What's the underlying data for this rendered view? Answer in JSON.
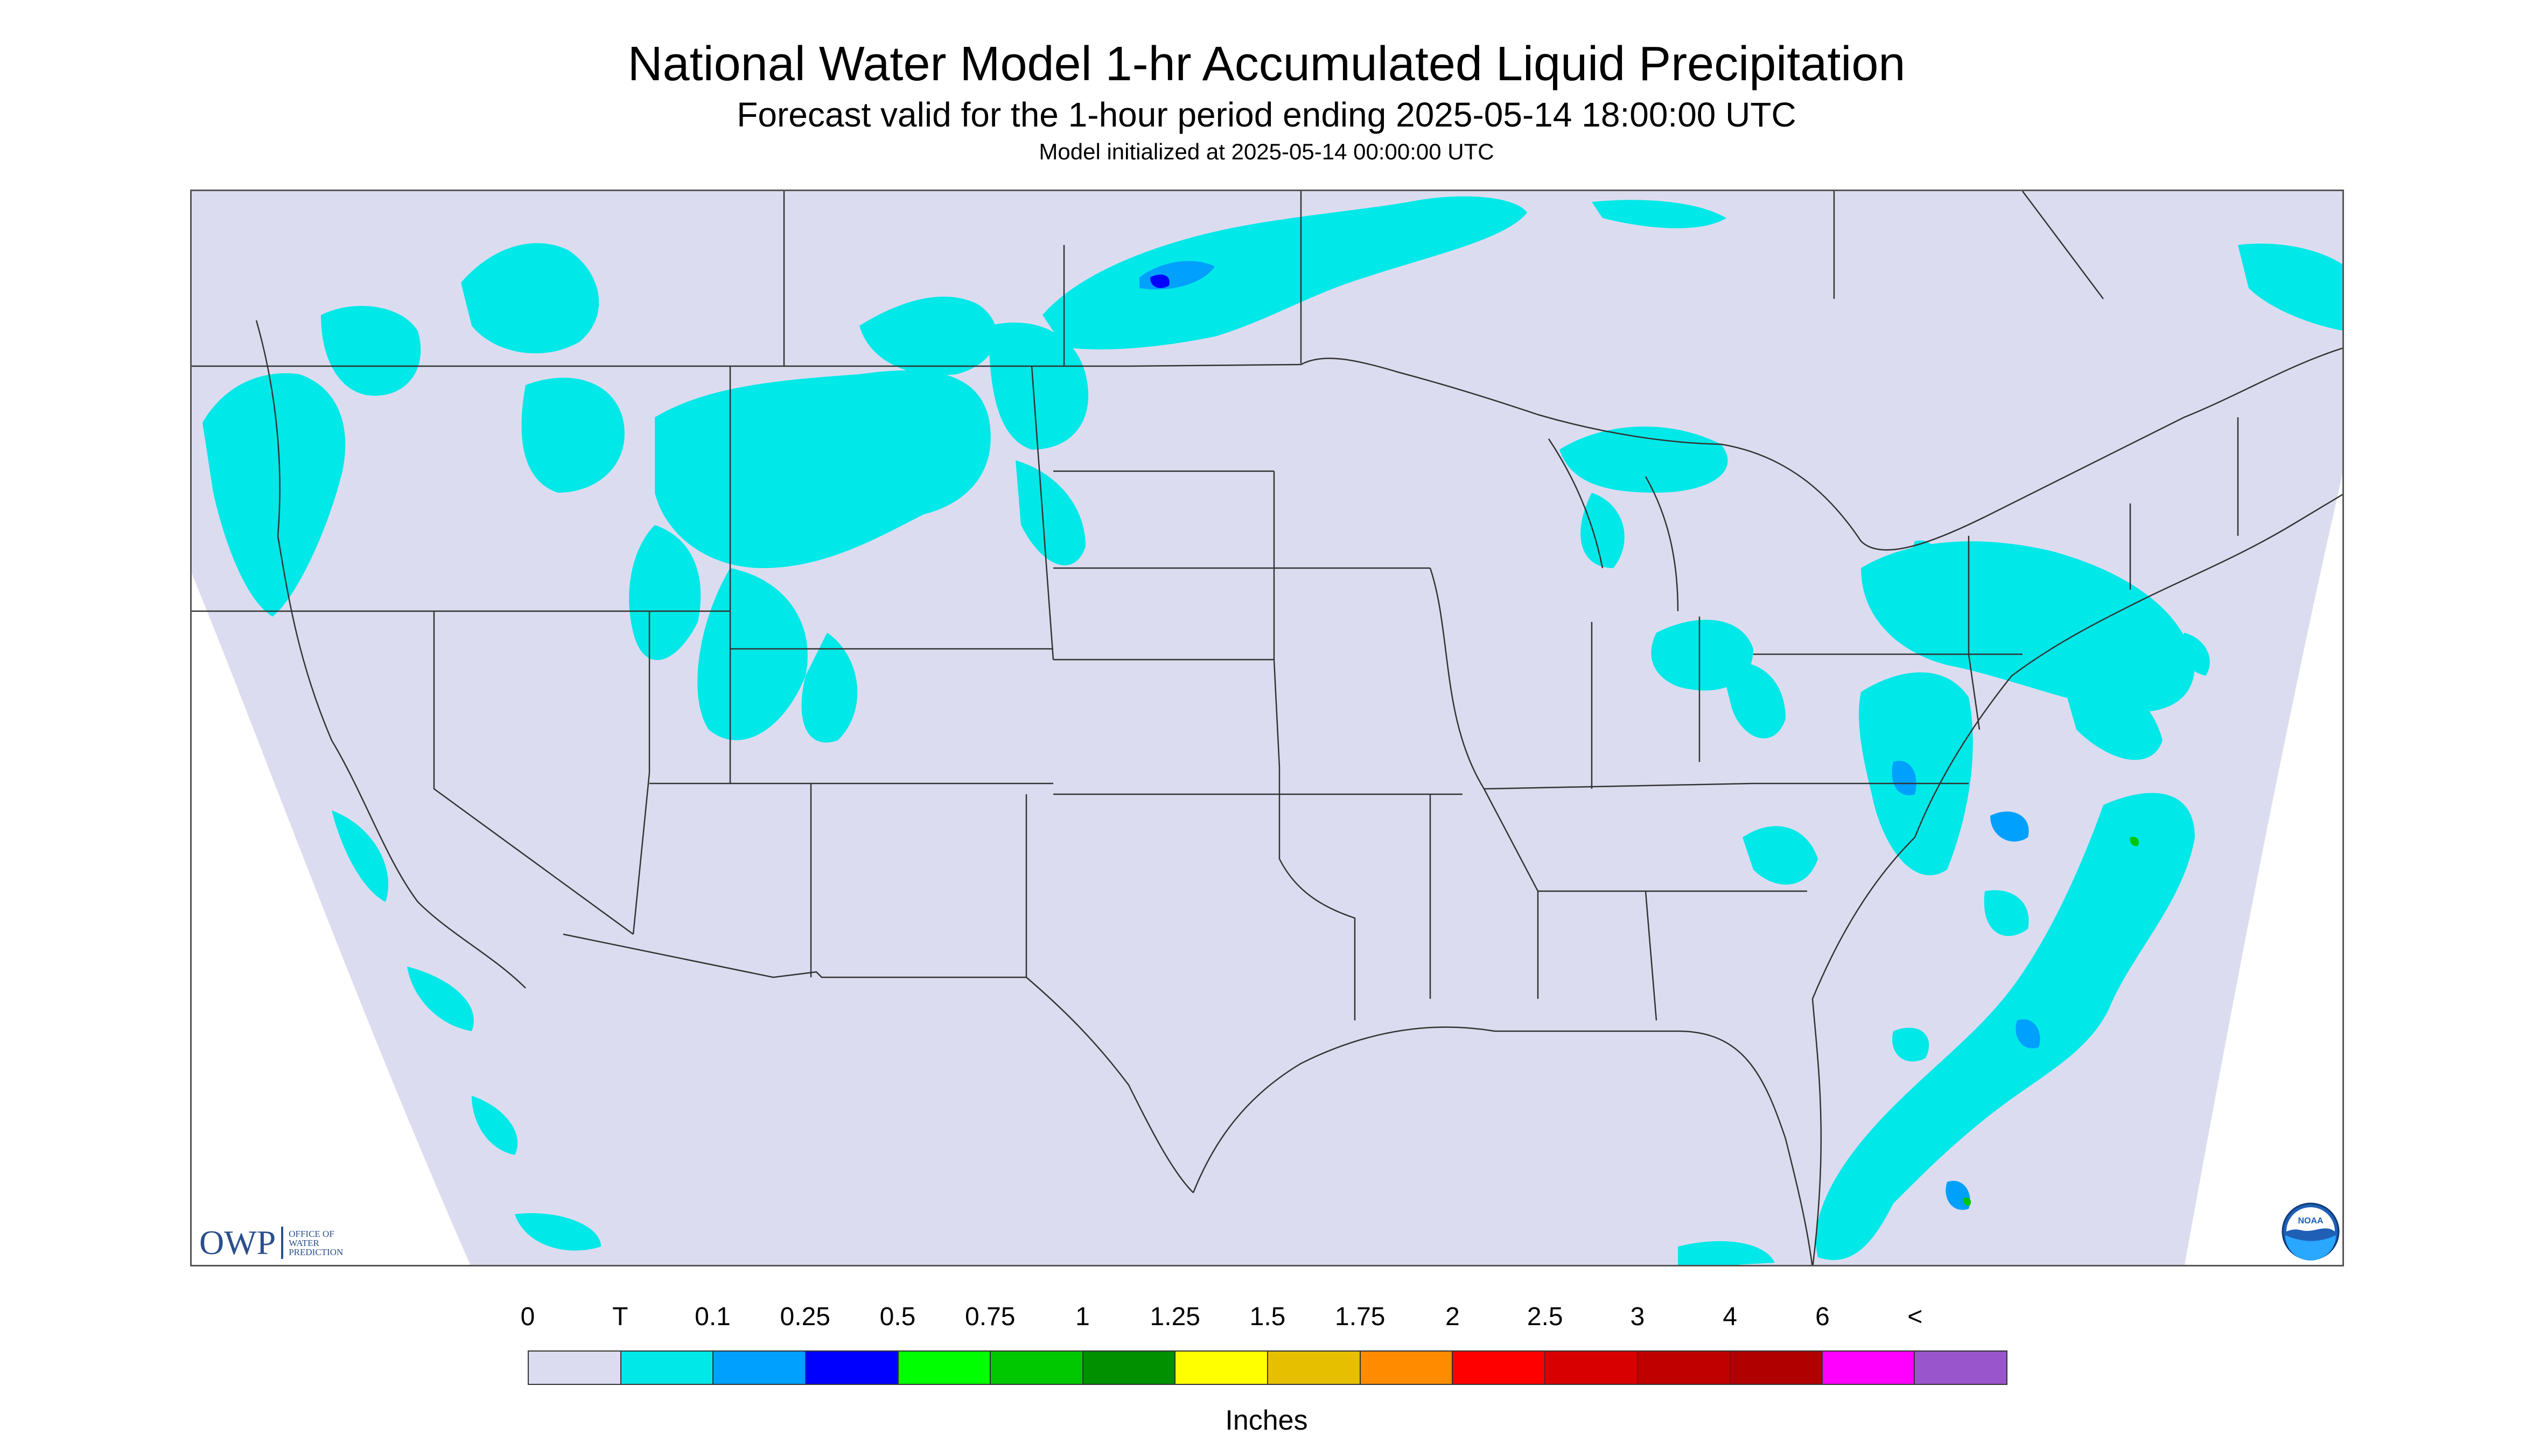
{
  "header": {
    "title": "National Water Model 1-hr Accumulated Liquid Precipitation",
    "subtitle": "Forecast valid for the 1-hour period ending 2025-05-14 18:00:00 UTC",
    "init_note": "Model initialized at 2025-05-14 00:00:00 UTC"
  },
  "logos": {
    "owp_letters": "OWP",
    "owp_text": "OFFICE OF WATER PREDICTION",
    "noaa_text": "NOAA"
  },
  "legend": {
    "unit": "Inches",
    "labels": [
      "0",
      "T",
      "0.1",
      "0.25",
      "0.5",
      "0.75",
      "1",
      "1.25",
      "1.5",
      "1.75",
      "2",
      "2.5",
      "3",
      "4",
      "6",
      "<"
    ],
    "colors": [
      "#dcdcf0",
      "#00e8e8",
      "#00a0ff",
      "#0000ff",
      "#00ff00",
      "#00c800",
      "#009000",
      "#ffff00",
      "#e6c000",
      "#ff8c00",
      "#ff0000",
      "#d80000",
      "#c00000",
      "#b00000",
      "#ff00ff",
      "#9955cc"
    ]
  },
  "map": {
    "domain_color": "#dcdcf0",
    "boundary_color": "#333333",
    "precip_light": "#00e8e8",
    "precip_medium": "#00a0ff",
    "precip_heavy": "#0000ff",
    "precip_green": "#00c800"
  }
}
